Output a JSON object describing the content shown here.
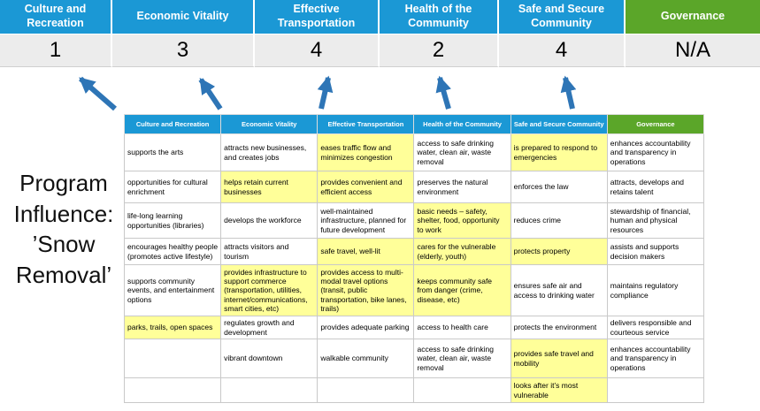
{
  "title": {
    "lines": [
      "Program",
      "Influence:",
      "’Snow",
      "Removal’"
    ]
  },
  "colors": {
    "blue": "#1b98d5",
    "green": "#5ba629",
    "arrow": "#2e75b6",
    "highlight": "#ffff99",
    "score_bg": "#ececec",
    "grid": "#c9c9c9"
  },
  "scoreboard": {
    "columns": [
      {
        "label": "Culture and Recreation",
        "score": "1",
        "theme": "blue"
      },
      {
        "label": "Economic Vitality",
        "score": "3",
        "theme": "blue"
      },
      {
        "label": "Effective Transportation",
        "score": "4",
        "theme": "blue"
      },
      {
        "label": "Health of the Community",
        "score": "2",
        "theme": "blue"
      },
      {
        "label": "Safe and Secure Community",
        "score": "4",
        "theme": "blue"
      },
      {
        "label": "Governance",
        "score": "N/A",
        "theme": "green"
      }
    ]
  },
  "matrix": {
    "headers": [
      {
        "label": "Culture and Recreation",
        "theme": "blue"
      },
      {
        "label": "Economic Vitality",
        "theme": "blue"
      },
      {
        "label": "Effective Transportation",
        "theme": "blue"
      },
      {
        "label": "Health of the Community",
        "theme": "blue"
      },
      {
        "label": "Safe and Secure Community",
        "theme": "blue"
      },
      {
        "label": "Governance",
        "theme": "green"
      }
    ],
    "rows": [
      [
        {
          "text": "supports the arts",
          "highlight": false
        },
        {
          "text": "attracts new businesses, and creates jobs",
          "highlight": false
        },
        {
          "text": "eases traffic flow and minimizes congestion",
          "highlight": true
        },
        {
          "text": "access to safe drinking water, clean air, waste removal",
          "highlight": false
        },
        {
          "text": "is prepared to respond to emergencies",
          "highlight": true
        },
        {
          "text": "enhances accountability and transparency in operations",
          "highlight": false
        }
      ],
      [
        {
          "text": "opportunities for cultural enrichment",
          "highlight": false
        },
        {
          "text": "helps retain current businesses",
          "highlight": true
        },
        {
          "text": "provides convenient and efficient access",
          "highlight": true
        },
        {
          "text": "preserves the natural environment",
          "highlight": false
        },
        {
          "text": "enforces the law",
          "highlight": false
        },
        {
          "text": "attracts, develops and retains talent",
          "highlight": false
        }
      ],
      [
        {
          "text": "life-long learning opportunities (libraries)",
          "highlight": false
        },
        {
          "text": "develops the workforce",
          "highlight": false
        },
        {
          "text": "well-maintained infrastructure, planned for future development",
          "highlight": false
        },
        {
          "text": "basic needs – safety, shelter, food, opportunity to work",
          "highlight": true
        },
        {
          "text": "reduces crime",
          "highlight": false
        },
        {
          "text": "stewardship of financial, human and physical resources",
          "highlight": false
        }
      ],
      [
        {
          "text": "encourages healthy people (promotes active lifestyle)",
          "highlight": false
        },
        {
          "text": "attracts visitors and tourism",
          "highlight": false
        },
        {
          "text": "safe travel, well-lit",
          "highlight": true
        },
        {
          "text": "cares for the vulnerable (elderly, youth)",
          "highlight": true
        },
        {
          "text": "protects property",
          "highlight": true
        },
        {
          "text": "assists and supports decision makers",
          "highlight": false
        }
      ],
      [
        {
          "text": "supports community events, and entertainment options",
          "highlight": false
        },
        {
          "text": "provides infrastructure to support commerce (transportation, utilities, internet/communications, smart cities, etc)",
          "highlight": true
        },
        {
          "text": "provides access to multi-modal travel options (transit, public transportation, bike lanes, trails)",
          "highlight": true
        },
        {
          "text": "keeps community safe from danger (crime, disease, etc)",
          "highlight": true
        },
        {
          "text": "ensures safe air and access to drinking water",
          "highlight": false
        },
        {
          "text": "maintains regulatory compliance",
          "highlight": false
        }
      ],
      [
        {
          "text": "parks, trails, open spaces",
          "highlight": true
        },
        {
          "text": "regulates growth and development",
          "highlight": false
        },
        {
          "text": "provides adequate parking",
          "highlight": false
        },
        {
          "text": "access to health care",
          "highlight": false
        },
        {
          "text": "protects the environment",
          "highlight": false
        },
        {
          "text": "delivers responsible and courteous service",
          "highlight": false
        }
      ],
      [
        {
          "text": "",
          "highlight": false
        },
        {
          "text": "vibrant downtown",
          "highlight": false
        },
        {
          "text": "walkable community",
          "highlight": false
        },
        {
          "text": "access to safe drinking water, clean air, waste removal",
          "highlight": false
        },
        {
          "text": "provides safe travel and mobility",
          "highlight": true
        },
        {
          "text": "enhances accountability and transparency in operations",
          "highlight": false
        }
      ],
      [
        {
          "text": "",
          "highlight": false
        },
        {
          "text": "",
          "highlight": false
        },
        {
          "text": "",
          "highlight": false
        },
        {
          "text": "",
          "highlight": false
        },
        {
          "text": "looks after it’s most vulnerable",
          "highlight": true
        },
        {
          "text": "",
          "highlight": false
        }
      ]
    ]
  }
}
